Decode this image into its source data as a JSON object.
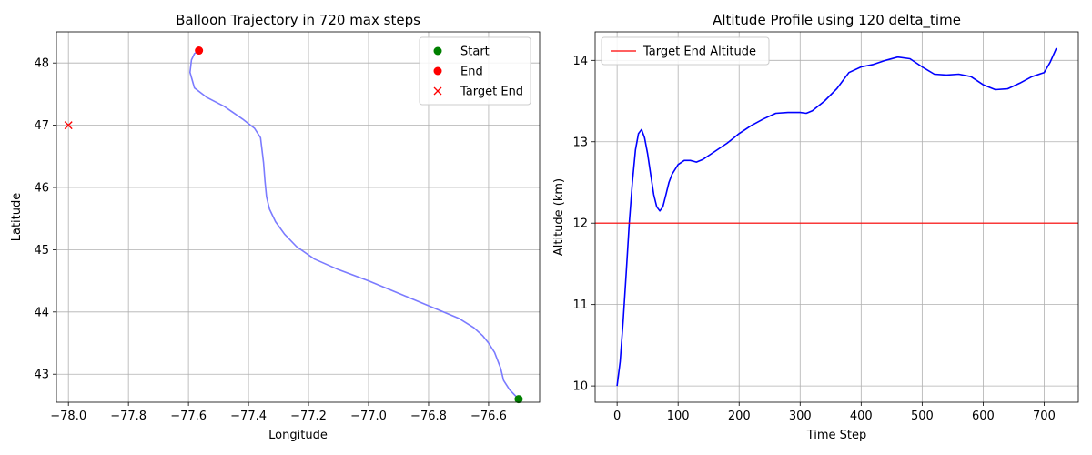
{
  "chart_data": [
    {
      "type": "line",
      "title": "Balloon Trajectory in 720 max steps",
      "xlabel": "Longitude",
      "ylabel": "Latitude",
      "xlim": [
        -78.04,
        -76.43
      ],
      "ylim": [
        42.55,
        48.5
      ],
      "xticks": [
        -78.0,
        -77.8,
        -77.6,
        -77.4,
        -77.2,
        -77.0,
        -76.8,
        -76.6
      ],
      "xtick_labels": [
        "−78.0",
        "−77.8",
        "−77.6",
        "−77.4",
        "−77.2",
        "−77.0",
        "−76.8",
        "−76.6"
      ],
      "yticks": [
        43,
        44,
        45,
        46,
        47,
        48
      ],
      "ytick_labels": [
        "43",
        "44",
        "45",
        "46",
        "47",
        "48"
      ],
      "grid": true,
      "legend_position": "top-right",
      "colors": {
        "trajectory": "#7b7bff",
        "start": "#008000",
        "end": "#ff0000",
        "target": "#ff0000"
      },
      "series": [
        {
          "kind": "line",
          "x": [
            -76.5,
            -76.53,
            -76.55,
            -76.56,
            -76.58,
            -76.6,
            -76.62,
            -76.65,
            -76.7,
            -76.8,
            -76.9,
            -77.0,
            -77.1,
            -77.18,
            -77.24,
            -77.28,
            -77.31,
            -77.33,
            -77.34,
            -77.345,
            -77.35,
            -77.36,
            -77.38,
            -77.42,
            -77.48,
            -77.54,
            -77.58,
            -77.595,
            -77.59,
            -77.58,
            -77.565
          ],
          "y": [
            42.6,
            42.75,
            42.9,
            43.1,
            43.35,
            43.5,
            43.62,
            43.75,
            43.9,
            44.1,
            44.3,
            44.5,
            44.68,
            44.85,
            45.05,
            45.25,
            45.45,
            45.65,
            45.85,
            46.1,
            46.4,
            46.8,
            46.95,
            47.1,
            47.3,
            47.45,
            47.6,
            47.85,
            48.05,
            48.15,
            48.2
          ]
        },
        {
          "kind": "marker",
          "name": "Start",
          "marker": "circle",
          "x": [
            -76.5
          ],
          "y": [
            42.6
          ]
        },
        {
          "kind": "marker",
          "name": "End",
          "marker": "circle",
          "x": [
            -77.565
          ],
          "y": [
            48.2
          ]
        },
        {
          "kind": "marker",
          "name": "Target End",
          "marker": "x",
          "x": [
            -78.0
          ],
          "y": [
            47.0
          ]
        }
      ]
    },
    {
      "type": "line",
      "title": "Altitude Profile using 120 delta_time",
      "xlabel": "Time Step",
      "ylabel": "Altitude (km)",
      "xlim": [
        -36,
        756
      ],
      "ylim": [
        9.8,
        14.35
      ],
      "xticks": [
        0,
        100,
        200,
        300,
        400,
        500,
        600,
        700
      ],
      "xtick_labels": [
        "0",
        "100",
        "200",
        "300",
        "400",
        "500",
        "600",
        "700"
      ],
      "yticks": [
        10,
        11,
        12,
        13,
        14
      ],
      "ytick_labels": [
        "10",
        "11",
        "12",
        "13",
        "14"
      ],
      "grid": true,
      "legend_position": "top-left",
      "colors": {
        "altitude": "#0000ff",
        "target": "#ff0000"
      },
      "series": [
        {
          "kind": "line",
          "x": [
            0,
            5,
            10,
            15,
            20,
            25,
            30,
            35,
            40,
            45,
            50,
            55,
            60,
            65,
            70,
            75,
            80,
            85,
            90,
            100,
            110,
            120,
            130,
            140,
            150,
            160,
            170,
            180,
            190,
            200,
            220,
            240,
            260,
            280,
            300,
            310,
            320,
            340,
            360,
            380,
            400,
            420,
            440,
            460,
            480,
            500,
            520,
            540,
            560,
            580,
            600,
            620,
            640,
            660,
            680,
            700,
            710,
            720
          ],
          "y": [
            10.0,
            10.3,
            10.8,
            11.4,
            12.0,
            12.5,
            12.9,
            13.1,
            13.15,
            13.05,
            12.85,
            12.6,
            12.35,
            12.2,
            12.15,
            12.2,
            12.35,
            12.5,
            12.6,
            12.72,
            12.77,
            12.77,
            12.75,
            12.78,
            12.83,
            12.88,
            12.93,
            12.98,
            13.04,
            13.1,
            13.2,
            13.28,
            13.35,
            13.36,
            13.36,
            13.35,
            13.38,
            13.5,
            13.65,
            13.85,
            13.92,
            13.95,
            14.0,
            14.04,
            14.02,
            13.92,
            13.83,
            13.82,
            13.83,
            13.8,
            13.7,
            13.64,
            13.65,
            13.72,
            13.8,
            13.85,
            13.98,
            14.15
          ]
        },
        {
          "kind": "hline",
          "name": "Target End Altitude",
          "y": 12
        }
      ]
    }
  ]
}
